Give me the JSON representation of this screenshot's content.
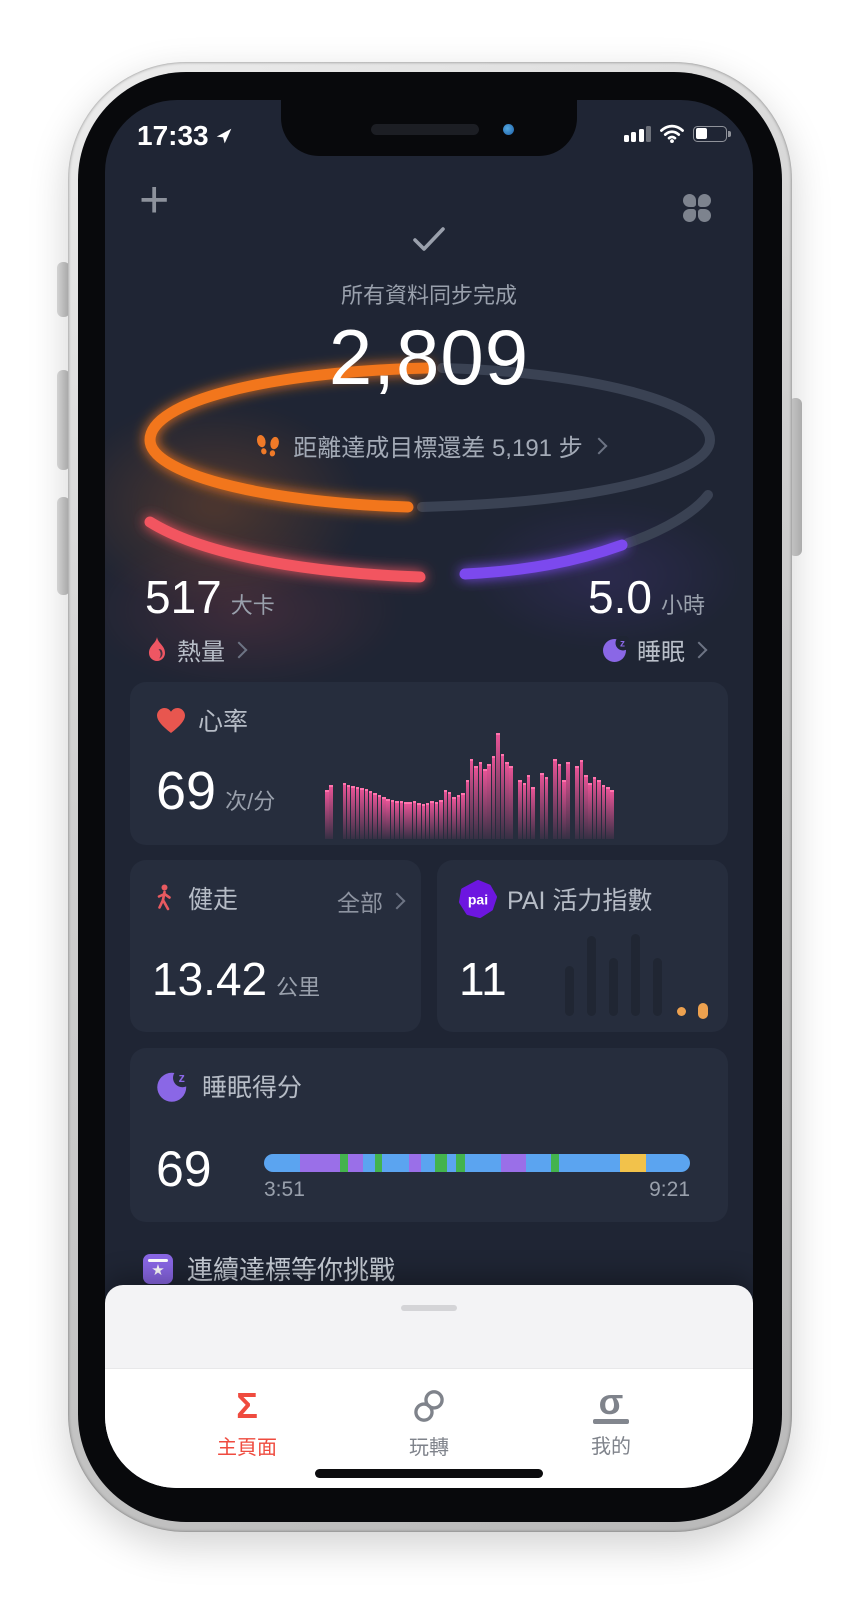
{
  "status_bar": {
    "time": "17:33"
  },
  "sync_banner": {
    "message": "所有資料同步完成"
  },
  "steps": {
    "value": "2,809",
    "goal_message": "距離達成目標還差 5,191 步"
  },
  "calories": {
    "value": "517",
    "unit": "大卡",
    "label": "熱量"
  },
  "sleep_summary": {
    "value": "5.0",
    "unit": "小時",
    "label": "睡眠"
  },
  "heart_rate_card": {
    "title": "心率",
    "value": "69",
    "unit": "次/分",
    "chart": {
      "type": "area",
      "color": "#f0559a",
      "values": [
        0.45,
        0.5,
        0,
        0,
        0.52,
        0.5,
        0.49,
        0.48,
        0.47,
        0.46,
        0.44,
        0.42,
        0.4,
        0.38,
        0.37,
        0.36,
        0.35,
        0.35,
        0.34,
        0.34,
        0.35,
        0.33,
        0.32,
        0.33,
        0.35,
        0.34,
        0.36,
        0.45,
        0.43,
        0.38,
        0.4,
        0.42,
        0.55,
        0.75,
        0.68,
        0.72,
        0.65,
        0.7,
        0.78,
        1,
        0.8,
        0.72,
        0.68,
        0,
        0.55,
        0.52,
        0.6,
        0.48,
        0,
        0.62,
        0.58,
        0,
        0.75,
        0.7,
        0.55,
        0.72,
        0,
        0.68,
        0.74,
        0.6,
        0.52,
        0.58,
        0.55,
        0.5,
        0.48,
        0.45
      ]
    }
  },
  "walking_card": {
    "title": "健走",
    "filter_label": "全部",
    "value": "13.42",
    "unit": "公里"
  },
  "pai_card": {
    "badge": "pai",
    "title": "PAI 活力指數",
    "value": "11",
    "bars": [
      0.5,
      0.8,
      0.58,
      0.82,
      0.58
    ]
  },
  "sleep_card": {
    "title": "睡眠得分",
    "score": "69",
    "start_time": "3:51",
    "end_time": "9:21",
    "segments": [
      {
        "color": "blue",
        "width": 8.5
      },
      {
        "color": "purple",
        "width": 9.4
      },
      {
        "color": "green",
        "width": 1.8
      },
      {
        "color": "purple",
        "width": 3.6
      },
      {
        "color": "blue",
        "width": 2.8
      },
      {
        "color": "green",
        "width": 1.5
      },
      {
        "color": "blue",
        "width": 6.5
      },
      {
        "color": "purple",
        "width": 2.8
      },
      {
        "color": "blue",
        "width": 3.3
      },
      {
        "color": "green",
        "width": 2.7
      },
      {
        "color": "blue",
        "width": 2.3
      },
      {
        "color": "green",
        "width": 2.1
      },
      {
        "color": "blue",
        "width": 8.3
      },
      {
        "color": "purple",
        "width": 6.0
      },
      {
        "color": "blue",
        "width": 5.7
      },
      {
        "color": "green",
        "width": 2.0
      },
      {
        "color": "blue",
        "width": 14.3
      },
      {
        "color": "yellow",
        "width": 6.1
      },
      {
        "color": "blue",
        "width": 10.3
      }
    ],
    "segment_colors": {
      "blue": "#5ba4f0",
      "purple": "#9a6fe8",
      "green": "#43b34d",
      "yellow": "#f2c24b"
    }
  },
  "challenge_banner": {
    "text": "連續達標等你挑戰"
  },
  "tab_bar": {
    "tabs": [
      {
        "label": "主頁面",
        "glyph": "Σ",
        "active": true
      },
      {
        "label": "玩轉",
        "glyph": "",
        "active": false
      },
      {
        "label": "我的",
        "glyph": "σ",
        "active": false
      }
    ]
  },
  "colors": {
    "screen_bg": "#1f2534",
    "card_bg": "#262d3d",
    "arc_orange": "#f2761f",
    "arc_red": "#f25560",
    "arc_purple": "#7b49ee",
    "arc_track": "#3a4253",
    "heart_red": "#e8564f",
    "hr_pink": "#f0559a",
    "walk_red": "#e85a60",
    "pai_purple": "#6d16e0",
    "moon_purple": "#8a67e6",
    "medal_purple": "#8a67e6",
    "tab_active": "#ef4b3f",
    "pai_dot_orange": "#eda14f",
    "foot_orange": "#f07a28"
  }
}
